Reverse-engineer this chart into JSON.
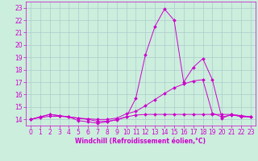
{
  "xlabel": "Windchill (Refroidissement éolien,°C)",
  "xlim": [
    -0.5,
    23.5
  ],
  "ylim": [
    13.5,
    23.5
  ],
  "yticks": [
    14,
    15,
    16,
    17,
    18,
    19,
    20,
    21,
    22,
    23
  ],
  "xticks": [
    0,
    1,
    2,
    3,
    4,
    5,
    6,
    7,
    8,
    9,
    10,
    11,
    12,
    13,
    14,
    15,
    16,
    17,
    18,
    19,
    20,
    21,
    22,
    23
  ],
  "background_color": "#cceedd",
  "grid_color": "#aacccc",
  "line_color": "#cc00cc",
  "series1_x": [
    0,
    1,
    2,
    3,
    4,
    5,
    6,
    7,
    8,
    9,
    10,
    11,
    12,
    13,
    14,
    15,
    16,
    17,
    18,
    19,
    20,
    21,
    22,
    23
  ],
  "series1_y": [
    14.0,
    14.2,
    14.4,
    14.3,
    14.2,
    13.9,
    13.8,
    13.7,
    13.8,
    14.0,
    14.2,
    15.7,
    19.2,
    21.5,
    22.9,
    22.0,
    17.0,
    18.2,
    18.9,
    17.2,
    14.1,
    14.4,
    14.2,
    14.2
  ],
  "series2_x": [
    0,
    1,
    2,
    3,
    4,
    5,
    6,
    7,
    8,
    9,
    10,
    11,
    12,
    13,
    14,
    15,
    16,
    17,
    18,
    19,
    20,
    21,
    22,
    23
  ],
  "series2_y": [
    14.0,
    14.15,
    14.25,
    14.25,
    14.2,
    14.1,
    14.05,
    14.0,
    14.0,
    14.1,
    14.45,
    14.65,
    15.1,
    15.6,
    16.1,
    16.55,
    16.85,
    17.1,
    17.2,
    14.5,
    14.2,
    14.35,
    14.3,
    14.2
  ],
  "series3_x": [
    0,
    1,
    2,
    3,
    4,
    5,
    6,
    7,
    8,
    9,
    10,
    11,
    12,
    13,
    14,
    15,
    16,
    17,
    18,
    19,
    20,
    21,
    22,
    23
  ],
  "series3_y": [
    14.0,
    14.2,
    14.4,
    14.3,
    14.2,
    14.1,
    14.0,
    13.85,
    13.85,
    13.95,
    14.2,
    14.35,
    14.4,
    14.4,
    14.4,
    14.4,
    14.4,
    14.4,
    14.4,
    14.4,
    14.4,
    14.4,
    14.3,
    14.2
  ],
  "tick_fontsize": 5.5,
  "xlabel_fontsize": 5.5,
  "marker_size": 2.0,
  "linewidth": 0.7
}
